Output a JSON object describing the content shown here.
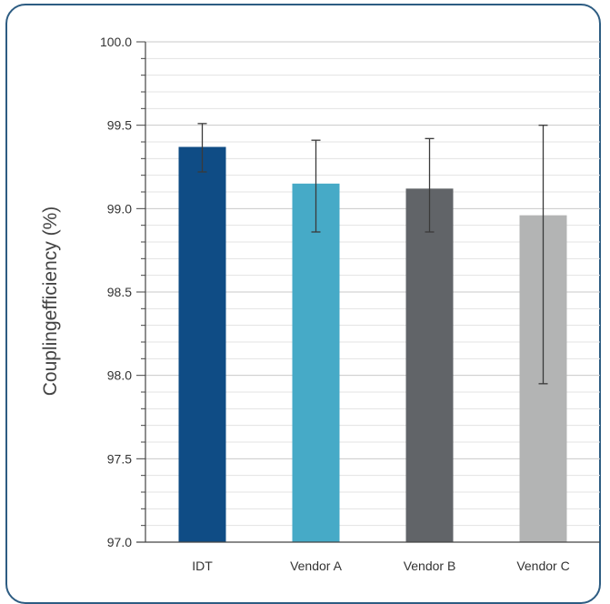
{
  "chart_data": {
    "type": "bar",
    "ylabel": "Couplingefficiency (%)",
    "ylim": [
      97.0,
      100.0
    ],
    "y_ticks": [
      "97.0",
      "97.5",
      "98.0",
      "98.5",
      "99.0",
      "99.5",
      "100.0"
    ],
    "y_tick_values": [
      97.0,
      97.5,
      98.0,
      98.5,
      99.0,
      99.5,
      100.0
    ],
    "minor_step": 0.1,
    "grid": true,
    "categories": [
      "IDT",
      "Vendor A",
      "Vendor B",
      "Vendor C"
    ],
    "values": [
      99.37,
      99.15,
      99.12,
      98.96
    ],
    "error_low": [
      99.22,
      98.86,
      98.86,
      97.95
    ],
    "error_high": [
      99.51,
      99.41,
      99.42,
      99.5
    ],
    "colors": [
      "#0f4c85",
      "#46aac7",
      "#616468",
      "#b3b4b4"
    ]
  }
}
